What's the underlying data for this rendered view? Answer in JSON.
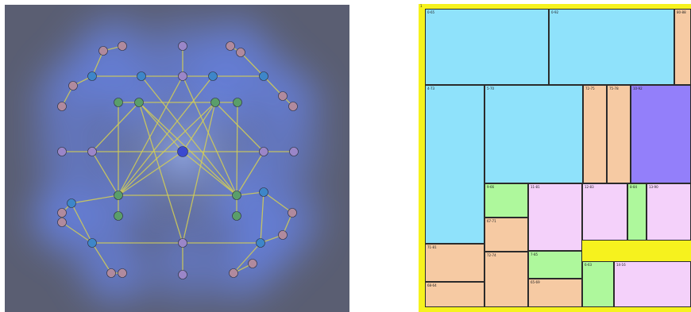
{
  "left_visual": {
    "background": "#5a5e72",
    "glow_color": "#6a8cff",
    "edge_color": "#d4cf55",
    "node_colors": {
      "pink": "#b08a9e",
      "lavender": "#9a86c8",
      "blue": "#3e86c9",
      "green": "#5a9e6a",
      "center": "#3b49d0"
    }
  },
  "treemap": {
    "corner_label": "1",
    "colors": {
      "blue": "#8fe2fb",
      "orange": "#f6caa3",
      "purple": "#937ffa",
      "green": "#aef89c",
      "pink": "#f4d1fa",
      "border": "#f6f21e"
    },
    "cells": [
      {
        "id": "c1",
        "label": "0-65",
        "color": "blue"
      },
      {
        "id": "c2",
        "label": "0-92",
        "color": "blue"
      },
      {
        "id": "c3",
        "label": "80-88",
        "color": "orange"
      },
      {
        "id": "c4",
        "label": "4-73",
        "color": "blue"
      },
      {
        "id": "c5",
        "label": "5-70",
        "color": "blue"
      },
      {
        "id": "c6",
        "label": "72-75",
        "color": "orange"
      },
      {
        "id": "c7",
        "label": "75-78",
        "color": "orange"
      },
      {
        "id": "c8",
        "label": "10-92",
        "color": "purple"
      },
      {
        "id": "c9",
        "label": "9-66",
        "color": "green"
      },
      {
        "id": "c10",
        "label": "11-81",
        "color": "pink"
      },
      {
        "id": "c11",
        "label": "12-83",
        "color": "pink"
      },
      {
        "id": "c12",
        "label": "8-84",
        "color": "green"
      },
      {
        "id": "c13",
        "label": "13-90",
        "color": "pink"
      },
      {
        "id": "c14",
        "label": "67-71",
        "color": "orange"
      },
      {
        "id": "c15",
        "label": "71-81",
        "color": "orange"
      },
      {
        "id": "c16",
        "label": "72-74",
        "color": "orange"
      },
      {
        "id": "c17",
        "label": "7-85",
        "color": "green"
      },
      {
        "id": "c18",
        "label": "6-63",
        "color": "green"
      },
      {
        "id": "c19",
        "label": "14-16",
        "color": "pink"
      },
      {
        "id": "c20",
        "label": "65-69",
        "color": "orange"
      },
      {
        "id": "c21",
        "label": "68-64",
        "color": "orange"
      }
    ]
  }
}
